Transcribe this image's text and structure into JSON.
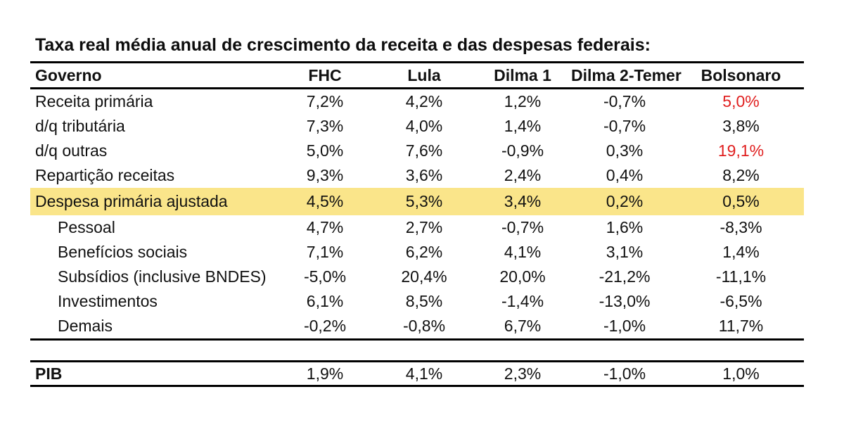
{
  "title": "Taxa real média anual de crescimento da receita e das despesas federais:",
  "colors": {
    "highlight": "#fae58a",
    "negative": "#e01f1f",
    "line": "#000000",
    "text": "#111111",
    "background": "#ffffff"
  },
  "chart_data": {
    "type": "table",
    "title": "Taxa real média anual de crescimento da receita e das despesas federais:",
    "columns": [
      "Governo",
      "FHC",
      "Lula",
      "Dilma 1",
      "Dilma 2-Temer",
      "Bolsonaro"
    ],
    "rows": [
      {
        "label": "Receita primária",
        "indent": false,
        "highlight": false,
        "values": [
          "7,2%",
          "4,2%",
          "1,2%",
          "-0,7%",
          "5,0%"
        ],
        "red_value_indices": [
          4
        ]
      },
      {
        "label": "d/q tributária",
        "indent": false,
        "highlight": false,
        "values": [
          "7,3%",
          "4,0%",
          "1,4%",
          "-0,7%",
          "3,8%"
        ],
        "red_value_indices": []
      },
      {
        "label": "d/q outras",
        "indent": false,
        "highlight": false,
        "values": [
          "5,0%",
          "7,6%",
          "-0,9%",
          "0,3%",
          "19,1%"
        ],
        "red_value_indices": [
          4
        ]
      },
      {
        "label": "Repartição receitas",
        "indent": false,
        "highlight": false,
        "values": [
          "9,3%",
          "3,6%",
          "2,4%",
          "0,4%",
          "8,2%"
        ],
        "red_value_indices": []
      },
      {
        "label": "Despesa primária ajustada",
        "indent": false,
        "highlight": true,
        "values": [
          "4,5%",
          "5,3%",
          "3,4%",
          "0,2%",
          "0,5%"
        ],
        "red_value_indices": []
      },
      {
        "label": "Pessoal",
        "indent": true,
        "highlight": false,
        "values": [
          "4,7%",
          "2,7%",
          "-0,7%",
          "1,6%",
          "-8,3%"
        ],
        "red_value_indices": []
      },
      {
        "label": "Benefícios sociais",
        "indent": true,
        "highlight": false,
        "values": [
          "7,1%",
          "6,2%",
          "4,1%",
          "3,1%",
          "1,4%"
        ],
        "red_value_indices": []
      },
      {
        "label": "Subsídios (inclusive BNDES)",
        "indent": true,
        "highlight": false,
        "values": [
          "-5,0%",
          "20,4%",
          "20,0%",
          "-21,2%",
          "-11,1%"
        ],
        "red_value_indices": []
      },
      {
        "label": "Investimentos",
        "indent": true,
        "highlight": false,
        "values": [
          "6,1%",
          "8,5%",
          "-1,4%",
          "-13,0%",
          "-6,5%"
        ],
        "red_value_indices": []
      },
      {
        "label": "Demais",
        "indent": true,
        "highlight": false,
        "values": [
          "-0,2%",
          "-0,8%",
          "6,7%",
          "-1,0%",
          "11,7%"
        ],
        "red_value_indices": []
      }
    ],
    "footer_row": {
      "label": "PIB",
      "values": [
        "1,9%",
        "4,1%",
        "2,3%",
        "-1,0%",
        "1,0%"
      ]
    }
  }
}
